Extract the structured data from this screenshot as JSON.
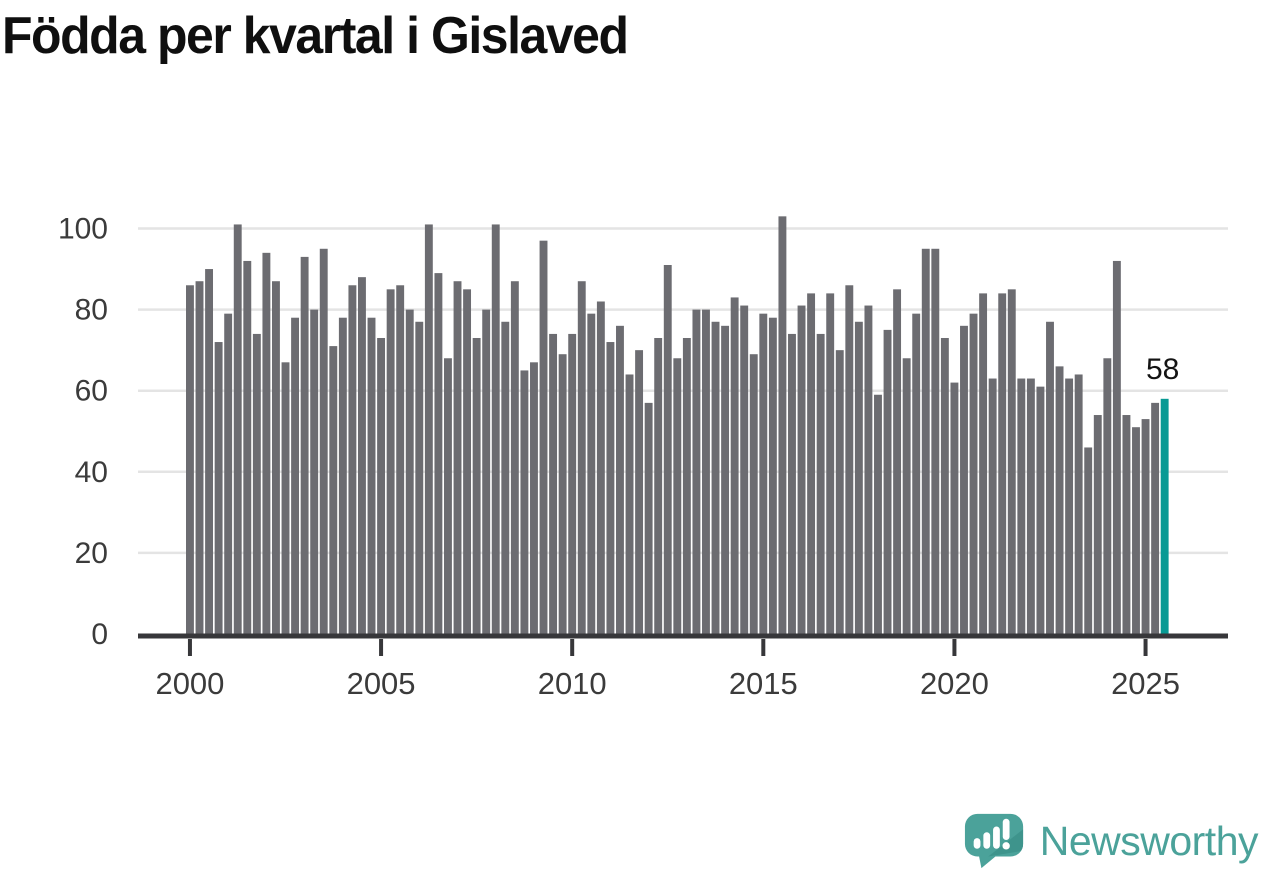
{
  "title": "Födda per kvartal i Gislaved",
  "branding": {
    "name": "Newsworthy",
    "icon": "newsworthy-speech-bubble-bar-chart-logo"
  },
  "colors": {
    "bar": "#6c6c71",
    "highlight": "#089A94",
    "gridline": "#e4e4e4",
    "axis": "#37373a",
    "tick_text": "#3b3b3b",
    "annotation_text": "#141414",
    "title_text": "#0f0f0f",
    "brand_teal": "#4BA29A",
    "brand_teal_dark": "#3E948C"
  },
  "chart_data": {
    "type": "bar",
    "title": "Födda per kvartal i Gislaved",
    "xlabel": "",
    "ylabel": "",
    "start_period": "2000-Q1",
    "end_period": "2025-Q3",
    "periodicity": "quarterly",
    "x_tick_labels": [
      "2000",
      "2005",
      "2010",
      "2015",
      "2020",
      "2025"
    ],
    "y_ticks": [
      0,
      20,
      40,
      60,
      80,
      100
    ],
    "ylim": [
      0,
      105
    ],
    "grid": true,
    "legend": false,
    "highlight_last": true,
    "last_value_label": "58",
    "values": [
      86,
      87,
      90,
      72,
      79,
      101,
      92,
      74,
      94,
      87,
      67,
      78,
      93,
      80,
      95,
      71,
      78,
      86,
      88,
      78,
      73,
      85,
      86,
      80,
      77,
      101,
      89,
      68,
      87,
      85,
      73,
      80,
      101,
      77,
      87,
      65,
      67,
      97,
      74,
      69,
      74,
      87,
      79,
      82,
      72,
      76,
      64,
      70,
      57,
      73,
      91,
      68,
      73,
      80,
      80,
      77,
      76,
      83,
      81,
      69,
      79,
      78,
      103,
      74,
      81,
      84,
      74,
      84,
      70,
      86,
      77,
      81,
      59,
      75,
      85,
      68,
      79,
      95,
      95,
      73,
      62,
      76,
      79,
      84,
      63,
      84,
      85,
      63,
      63,
      61,
      77,
      66,
      63,
      64,
      46,
      54,
      68,
      92,
      54,
      51,
      53,
      57,
      58
    ]
  }
}
